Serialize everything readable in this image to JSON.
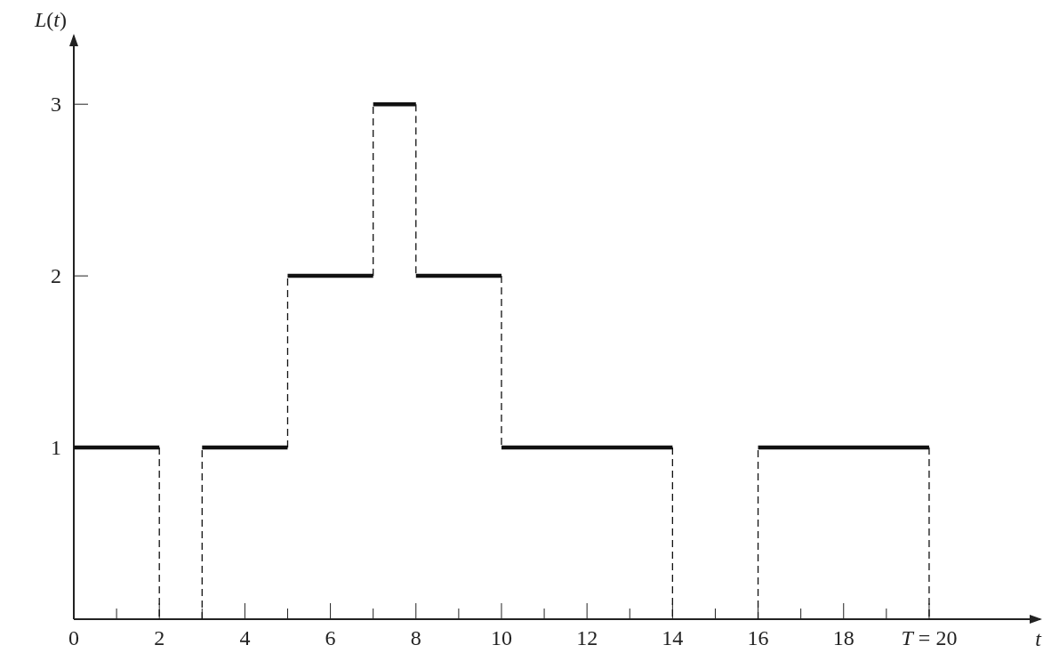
{
  "chart_data": {
    "type": "step",
    "xlabel": "t",
    "ylabel": "L(t)",
    "x": [
      0,
      2,
      3,
      5,
      7,
      8,
      10,
      14,
      16,
      20
    ],
    "series": [
      {
        "color": "#111111",
        "values": [
          1,
          0,
          1,
          2,
          3,
          2,
          1,
          0,
          1,
          0
        ]
      }
    ],
    "xlim": [
      0,
      22.6
    ],
    "ylim": [
      0,
      3.4
    ],
    "xticks": [
      0,
      {
        "value": 1,
        "label": null
      },
      2,
      {
        "value": 3,
        "label": null
      },
      4,
      {
        "value": 5,
        "label": null
      },
      6,
      {
        "value": 7,
        "label": null
      },
      8,
      {
        "value": 9,
        "label": null
      },
      10,
      {
        "value": 11,
        "label": null
      },
      12,
      {
        "value": 13,
        "label": null
      },
      14,
      {
        "value": 15,
        "label": null
      },
      16,
      {
        "value": 17,
        "label": null
      },
      18,
      {
        "value": 19,
        "label": null
      },
      {
        "value": 20,
        "label": "T = 20"
      }
    ],
    "yticks": [
      1,
      2,
      3
    ],
    "line_style": "solid",
    "marker": "none",
    "grid": false
  }
}
